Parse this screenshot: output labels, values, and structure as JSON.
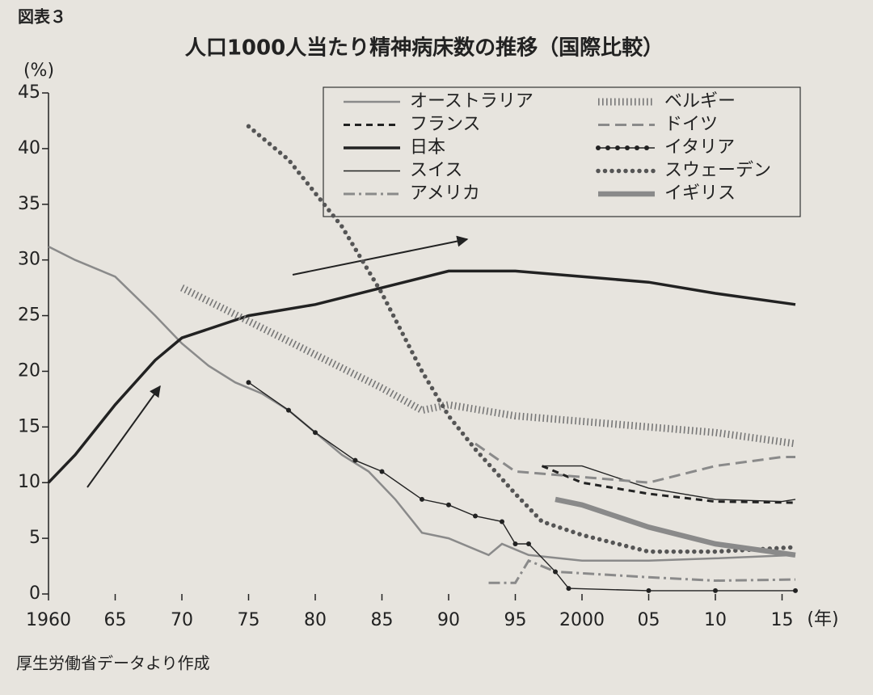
{
  "figure_label": "図表３",
  "source": "厚生労働省データより作成",
  "chart_data": {
    "type": "line",
    "title": "人口1000人当たり精神病床数の推移（国際比較）",
    "y_unit": "(%)",
    "x_unit": "(年)",
    "xlim": [
      1960,
      2016
    ],
    "ylim": [
      0,
      45
    ],
    "xticks": [
      1960,
      {
        "value": 1965,
        "label": "65"
      },
      {
        "value": 1970,
        "label": "70"
      },
      {
        "value": 1975,
        "label": "75"
      },
      {
        "value": 1980,
        "label": "80"
      },
      {
        "value": 1985,
        "label": "85"
      },
      {
        "value": 1990,
        "label": "90"
      },
      {
        "value": 1995,
        "label": "95"
      },
      2000,
      {
        "value": 2005,
        "label": "05"
      },
      {
        "value": 2010,
        "label": "10"
      },
      {
        "value": 2015,
        "label": "15"
      }
    ],
    "yticks": [
      0,
      5,
      10,
      15,
      20,
      25,
      30,
      35,
      40,
      45
    ],
    "legend": "top-right",
    "series": [
      {
        "name": "オーストラリア",
        "color": "#8a8a8a",
        "style": "solid-medium",
        "x": [
          1960,
          1962,
          1965,
          1968,
          1970,
          1972,
          1974,
          1976,
          1978,
          1980,
          1982,
          1984,
          1986,
          1988,
          1990,
          1993,
          1994,
          1996,
          2000,
          2005,
          2010,
          2016
        ],
        "values": [
          31.2,
          30,
          28.5,
          25,
          22.5,
          20.5,
          19,
          18,
          16.5,
          14.5,
          12.5,
          11,
          8.5,
          5.5,
          5,
          3.5,
          4.5,
          3.5,
          3,
          3,
          3.2,
          3.5
        ]
      },
      {
        "name": "フランス",
        "color": "#222222",
        "style": "dashed",
        "x": [
          1997,
          2000,
          2005,
          2010,
          2016
        ],
        "values": [
          11.5,
          10,
          9,
          8.3,
          8.2
        ]
      },
      {
        "name": "日本",
        "color": "#222222",
        "style": "solid-thick",
        "x": [
          1960,
          1962,
          1965,
          1968,
          1970,
          1975,
          1980,
          1985,
          1990,
          1995,
          2000,
          2005,
          2010,
          2016
        ],
        "values": [
          10,
          12.5,
          17,
          21,
          23,
          25,
          26,
          27.5,
          29,
          29,
          28.5,
          28,
          27,
          26
        ]
      },
      {
        "name": "スイス",
        "color": "#222222",
        "style": "solid-thin",
        "x": [
          1997,
          2000,
          2005,
          2010,
          2015,
          2016
        ],
        "values": [
          11.5,
          11.5,
          9.5,
          8.5,
          8.3,
          8.5
        ]
      },
      {
        "name": "アメリカ",
        "color": "#8a8a8a",
        "style": "dash-dot",
        "x": [
          1993,
          1995,
          1996,
          1998,
          2005,
          2010,
          2016
        ],
        "values": [
          1,
          1,
          3,
          2,
          1.5,
          1.2,
          1.3
        ]
      },
      {
        "name": "ベルギー",
        "color": "#777777",
        "style": "hatch",
        "x": [
          1970,
          1975,
          1980,
          1985,
          1988,
          1990,
          1995,
          2000,
          2005,
          2010,
          2016
        ],
        "values": [
          27.5,
          24.5,
          21.5,
          18.5,
          16.5,
          17,
          16,
          15.5,
          15,
          14.5,
          13.5
        ]
      },
      {
        "name": "ドイツ",
        "color": "#8a8a8a",
        "style": "long-dashed",
        "x": [
          1992,
          1995,
          2000,
          2005,
          2010,
          2015,
          2016
        ],
        "values": [
          13.5,
          11,
          10.5,
          10,
          11.5,
          12.3,
          12.3
        ]
      },
      {
        "name": "イタリア",
        "color": "#222222",
        "style": "dot-line",
        "x": [
          1975,
          1978,
          1980,
          1983,
          1985,
          1988,
          1990,
          1992,
          1994,
          1995,
          1996,
          1998,
          1999,
          2005,
          2010,
          2016
        ],
        "values": [
          19,
          16.5,
          14.5,
          12,
          11,
          8.5,
          8,
          7,
          6.5,
          4.5,
          4.5,
          2,
          0.5,
          0.3,
          0.3,
          0.3
        ]
      },
      {
        "name": "スウェーデン",
        "color": "#555555",
        "style": "dotted-thick",
        "x": [
          1975,
          1978,
          1982,
          1985,
          1988,
          1990,
          1992,
          1995,
          1997,
          2000,
          2005,
          2010,
          2016
        ],
        "values": [
          42,
          39,
          33,
          27,
          20,
          16,
          13,
          9,
          6.5,
          5.3,
          3.8,
          3.8,
          4.2
        ]
      },
      {
        "name": "イギリス",
        "color": "#8a8a8a",
        "style": "band",
        "x": [
          1998,
          2000,
          2005,
          2010,
          2016
        ],
        "values": [
          8.5,
          8,
          6,
          4.5,
          3.5
        ]
      }
    ]
  }
}
